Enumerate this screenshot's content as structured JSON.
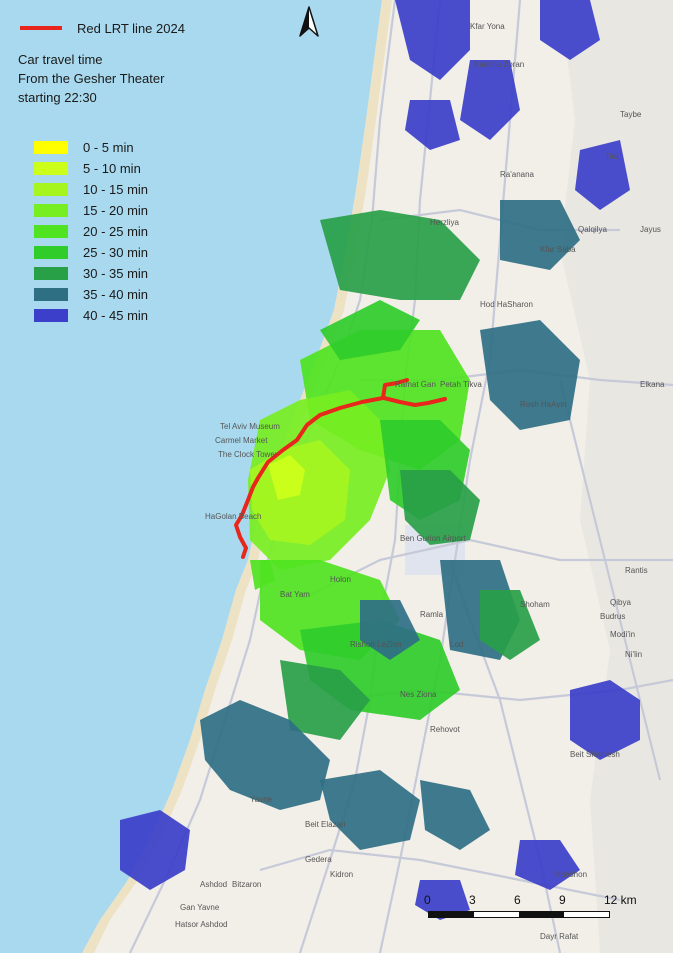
{
  "legend": {
    "lrt_label": "Red LRT line 2024",
    "lrt_color": "#e8261c",
    "title_lines": [
      "Car travel time",
      "From the Gesher Theater",
      "starting 22:30"
    ],
    "classes": [
      {
        "label": "0 - 5 min",
        "color": "#ffff00"
      },
      {
        "label": "5 - 10 min",
        "color": "#ccff1a"
      },
      {
        "label": "10 - 15 min",
        "color": "#a6f51f"
      },
      {
        "label": "15 - 20 min",
        "color": "#77ee22"
      },
      {
        "label": "20 - 25 min",
        "color": "#4fe321"
      },
      {
        "label": "25 - 30 min",
        "color": "#2fcc2a"
      },
      {
        "label": "30 - 35 min",
        "color": "#28a048"
      },
      {
        "label": "35 - 40 min",
        "color": "#2f6f84"
      },
      {
        "label": "40 - 45 min",
        "color": "#3b3fc9"
      }
    ]
  },
  "north_arrow": {
    "label": "N",
    "icon": "north-arrow-icon"
  },
  "scale": {
    "ticks": [
      "0",
      "3",
      "6",
      "9"
    ],
    "end_label": "12 km"
  },
  "colors": {
    "sea": "#a9d9ee",
    "land": "#f2efe9",
    "beach": "#ede3c4",
    "road": "#c6c9d8",
    "lrt": "#e8261c"
  },
  "places": [
    "Kfar Yona",
    "Kadima Zoran",
    "Taybe",
    "Tira",
    "Qalqilya",
    "Jayus",
    "Kfar Saba",
    "Herzliya",
    "Ra'anana",
    "Hod HaSharon",
    "Petah Tikva",
    "Rosh HaAyin",
    "Elkana",
    "Tel Aviv Museum",
    "Carmel Market",
    "The Clock Tower",
    "HaGolan Beach",
    "Ramat Gan",
    "Ben Gurion Airport",
    "Holon",
    "Bat Yam",
    "Rishon LeZion",
    "Nes Ziona",
    "Rehovot",
    "Ramla",
    "Lod",
    "Modi'in",
    "Shoham",
    "Yavne",
    "Gedera",
    "Kidron",
    "Beit Elazari",
    "Ashdod",
    "Gan Yavne",
    "Bitzaron",
    "Hatsor Ashdod",
    "Nahshon",
    "Dayr Rafat",
    "Ni'lin",
    "Budrus",
    "Qibya",
    "Rantis",
    "Beit Shemesh"
  ]
}
